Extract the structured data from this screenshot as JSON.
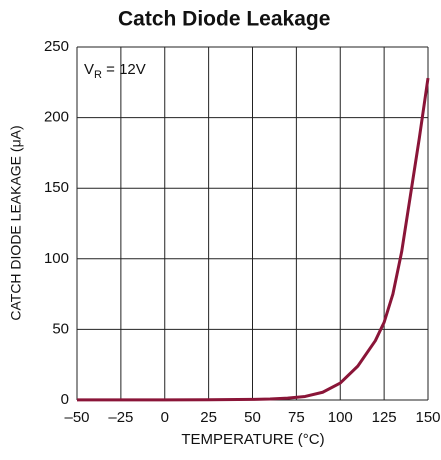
{
  "chart_data": {
    "type": "line",
    "title": "Catch Diode Leakage",
    "x_label": "TEMPERATURE (°C)",
    "y_label": "CATCH DIODE LEAKAGE (μA)",
    "annotation": {
      "text": "V",
      "subscript": "R",
      "suffix": " = 12V"
    },
    "x": [
      -50,
      -25,
      0,
      25,
      50,
      60,
      70,
      80,
      90,
      100,
      110,
      120,
      125,
      130,
      135,
      140,
      145,
      150
    ],
    "series": [
      {
        "name": "leakage",
        "color": "#8a1538",
        "values": [
          0.1,
          0.1,
          0.1,
          0.2,
          0.4,
          0.7,
          1.3,
          2.5,
          5.5,
          12,
          24,
          42,
          55,
          75,
          105,
          145,
          185,
          228
        ]
      }
    ],
    "xlim": [
      -50,
      150
    ],
    "xticks": [
      {
        "value": -50,
        "label": "–50"
      },
      {
        "value": -25,
        "label": "–25"
      },
      0,
      25,
      50,
      75,
      100,
      125,
      150
    ],
    "ylim": [
      0,
      250
    ],
    "yticks": [
      0,
      50,
      100,
      150,
      200,
      250
    ],
    "grid": true
  }
}
